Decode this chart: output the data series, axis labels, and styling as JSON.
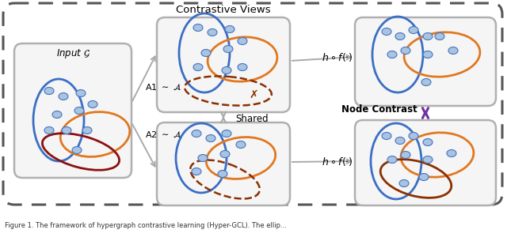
{
  "bg_color": "#ffffff",
  "outer_border_color": "#555555",
  "panel_bg": "#f5f5f5",
  "panel_border_color": "#b0b0b0",
  "blue_color": "#3a6fc4",
  "orange_color": "#e07820",
  "red_color": "#8B1010",
  "brown_color": "#8B3000",
  "purple_color": "#7030A0",
  "gray_color": "#aaaaaa",
  "node_fill": "#a8c4e0",
  "node_edge": "#4472C4",
  "title_text": "Contrastive Views",
  "input_label": "Input $\\mathcal{G}$",
  "a1_label": "A1 $\\sim$ $\\mathcal{A}$",
  "a2_label": "A2 $\\sim$ $\\mathcal{A}$",
  "func_top": "$h \\circ f(\\cdot)$",
  "func_bot": "$h \\circ f(\\cdot)$",
  "shared_label": "Shared",
  "contrast_label": "Node Contrast",
  "caption": "Figure 1. The framework of hypergraph contrastive learning (Hyper-GCL). The ellip..."
}
